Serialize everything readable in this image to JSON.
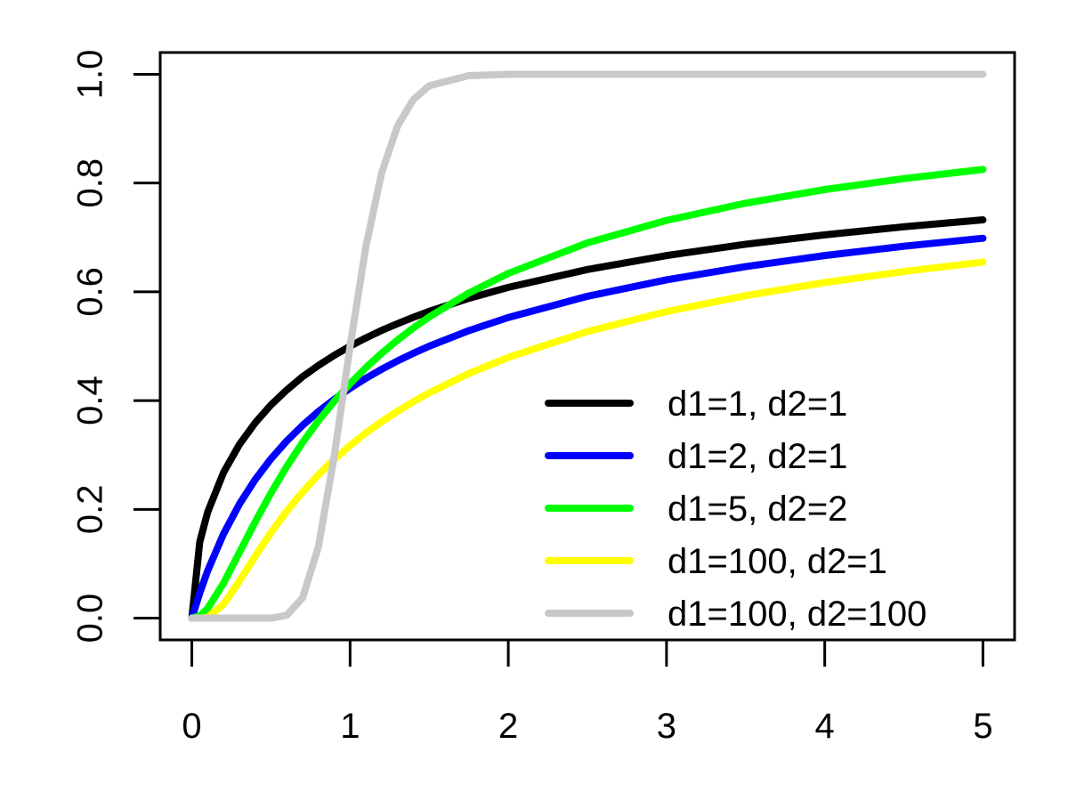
{
  "chart_data": {
    "type": "line",
    "x": [
      0,
      0.05,
      0.1,
      0.2,
      0.3,
      0.4,
      0.5,
      0.6,
      0.7,
      0.8,
      0.9,
      1,
      1.1,
      1.2,
      1.3,
      1.4,
      1.5,
      1.75,
      2,
      2.5,
      3,
      3.5,
      4,
      4.5,
      5
    ],
    "series": [
      {
        "name": "d1=1, d2=1",
        "color": "#000000",
        "values": [
          0,
          0.1401,
          0.195,
          0.2677,
          0.319,
          0.359,
          0.392,
          0.4196,
          0.444,
          0.4646,
          0.4832,
          0.5,
          0.5152,
          0.5291,
          0.5415,
          0.5532,
          0.5641,
          0.588,
          0.6082,
          0.641,
          0.6667,
          0.6875,
          0.7048,
          0.7196,
          0.7323
        ]
      },
      {
        "name": "d1=2, d2=1",
        "color": "#0000ff",
        "values": [
          0,
          0.0465,
          0.0871,
          0.1548,
          0.2094,
          0.2546,
          0.2929,
          0.3258,
          0.3545,
          0.3798,
          0.4024,
          0.4226,
          0.441,
          0.4577,
          0.473,
          0.487,
          0.5,
          0.5286,
          0.5528,
          0.5918,
          0.622,
          0.6464,
          0.6667,
          0.6838,
          0.6985
        ]
      },
      {
        "name": "d1=5, d2=2",
        "color": "#00ff00",
        "values": [
          0,
          0.0041,
          0.0179,
          0.0642,
          0.1203,
          0.1768,
          0.23,
          0.2789,
          0.3231,
          0.3629,
          0.3988,
          0.4312,
          0.4605,
          0.4871,
          0.5114,
          0.5335,
          0.5538,
          0.5977,
          0.6339,
          0.69,
          0.7313,
          0.763,
          0.788,
          0.8082,
          0.825
        ]
      },
      {
        "name": "d1=100, d2=1",
        "color": "#ffff00",
        "values": [
          0,
          0,
          0.0016,
          0.0253,
          0.0678,
          0.1138,
          0.1573,
          0.1967,
          0.232,
          0.2636,
          0.292,
          0.3173,
          0.3404,
          0.3613,
          0.3803,
          0.398,
          0.4142,
          0.4497,
          0.4795,
          0.527,
          0.5637,
          0.593,
          0.617,
          0.6373,
          0.6547
        ]
      },
      {
        "name": "d1=100, d2=100",
        "color": "#c8c8c8",
        "values": [
          0,
          0,
          0,
          0,
          0,
          0,
          0,
          0.0054,
          0.0375,
          0.1314,
          0.298,
          0.5,
          0.683,
          0.819,
          0.905,
          0.9535,
          0.9788,
          0.9974,
          1,
          1,
          1,
          1,
          1,
          1,
          1
        ]
      }
    ],
    "xlim": [
      -0.2,
      5.2
    ],
    "ylim": [
      -0.04,
      1.04
    ],
    "xticks": [
      0,
      1,
      2,
      3,
      4,
      5
    ],
    "yticks": [
      {
        "value": 0,
        "label": "0.0"
      },
      {
        "value": 0.2,
        "label": "0.2"
      },
      {
        "value": 0.4,
        "label": "0.4"
      },
      {
        "value": 0.6,
        "label": "0.6"
      },
      {
        "value": 0.8,
        "label": "0.8"
      },
      {
        "value": 1,
        "label": "1.0"
      }
    ],
    "legend": "bottomright"
  }
}
